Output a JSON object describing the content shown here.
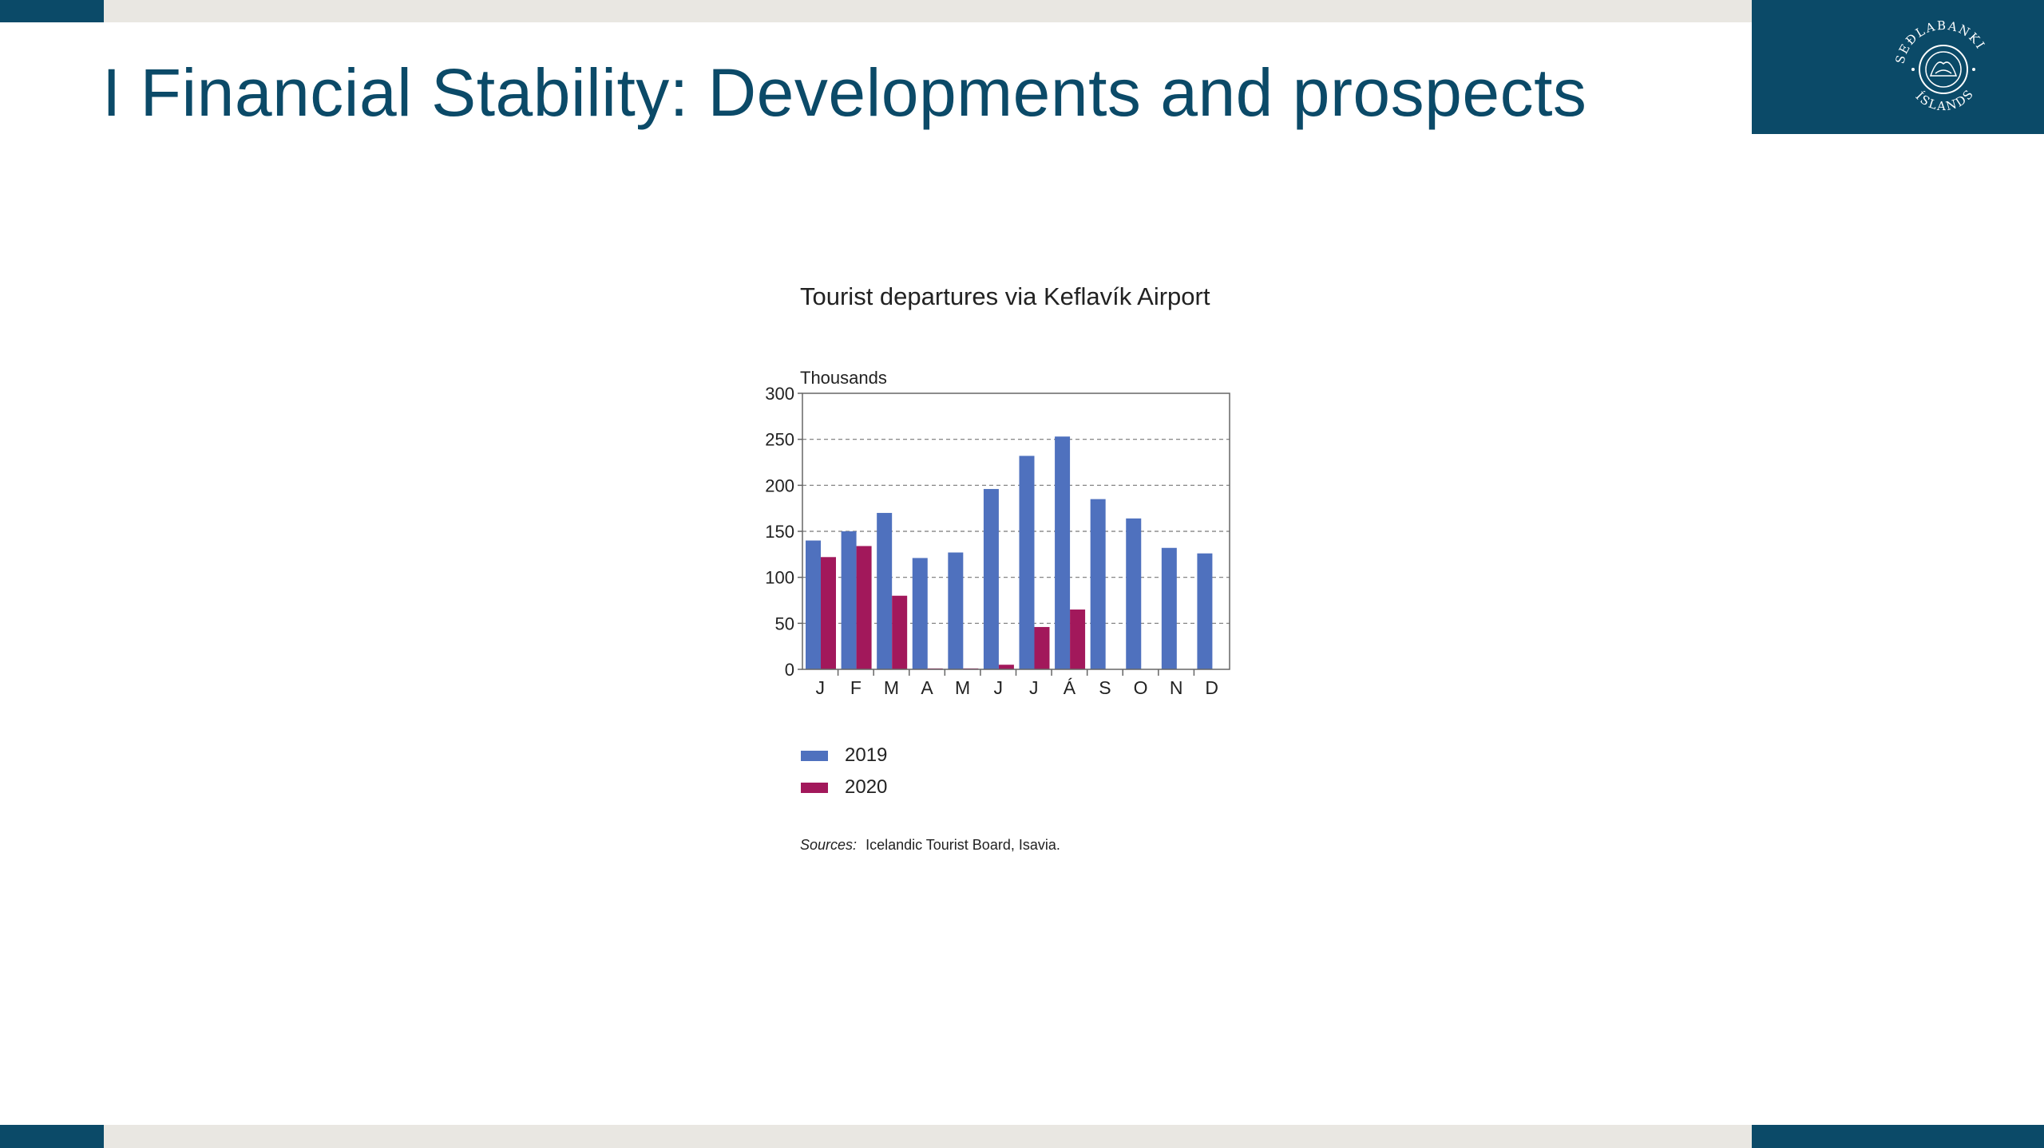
{
  "slide": {
    "title": "I Financial Stability: Developments and prospects",
    "logo_text": "SEÐLABANKI ÍSLANDS",
    "colors": {
      "brand": "#0b4a68",
      "band": "#e9e7e2"
    }
  },
  "chart_data": {
    "type": "bar",
    "title": "Tourist departures via Keflavík Airport",
    "ylabel": "Thousands",
    "xlabel": "",
    "ylim": [
      0,
      300
    ],
    "yticks": [
      0,
      50,
      100,
      150,
      200,
      250,
      300
    ],
    "grid": "dashed horizontal",
    "legend_position": "bottom-left",
    "categories": [
      "J",
      "F",
      "M",
      "A",
      "M",
      "J",
      "J",
      "Á",
      "S",
      "O",
      "N",
      "D"
    ],
    "series": [
      {
        "name": "2019",
        "color": "#4f71be",
        "values": [
          140,
          150,
          170,
          121,
          127,
          196,
          232,
          253,
          185,
          164,
          132,
          126
        ]
      },
      {
        "name": "2020",
        "color": "#a2185b",
        "values": [
          122,
          134,
          80,
          1,
          1,
          5,
          46,
          65,
          null,
          null,
          null,
          null
        ]
      }
    ],
    "source_prefix": "Sources:",
    "source_text": "Icelandic Tourist Board, Isavia."
  }
}
